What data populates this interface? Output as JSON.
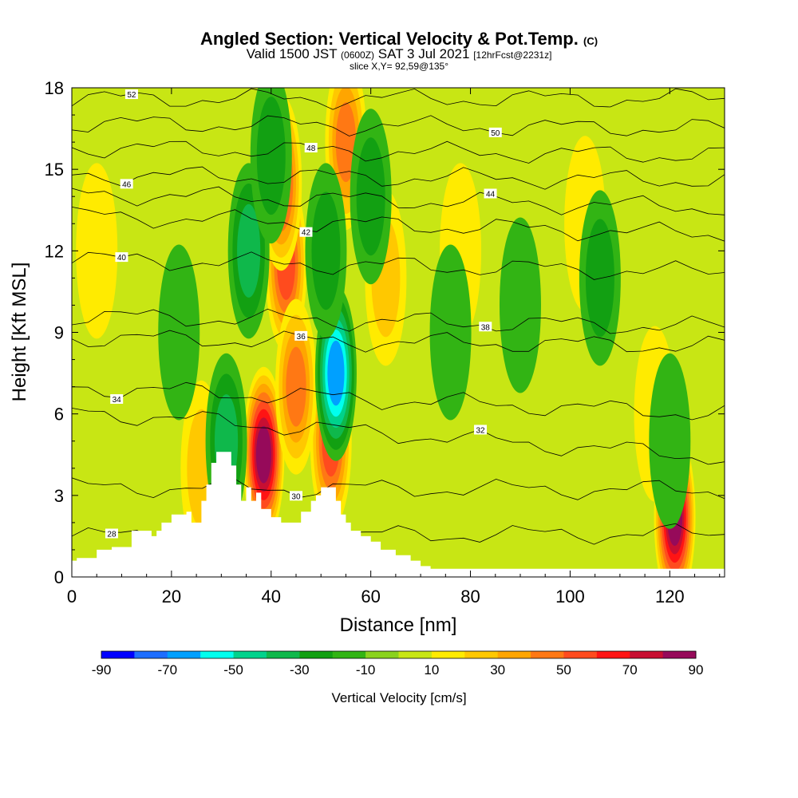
{
  "titles": {
    "main": "Angled Section: Vertical Velocity & Pot.Temp.",
    "main_suffix": "(C)",
    "valid_a": "Valid 1500 JST",
    "valid_b": "(0600Z)",
    "valid_c": "SAT 3 Jul 2021",
    "valid_d": "[12hrFcst@2231z]",
    "slice": "slice X,Y= 92,59@135°"
  },
  "chart_data": {
    "type": "heatmap",
    "xlabel": "Distance [nm]",
    "ylabel": "Height [Kft MSL]",
    "xlim": [
      0,
      131
    ],
    "ylim": [
      0,
      18
    ],
    "xticks": [
      0,
      20,
      40,
      60,
      80,
      100,
      120
    ],
    "yticks": [
      0,
      3,
      6,
      9,
      12,
      15,
      18
    ],
    "colorbar": {
      "label": "Vertical Velocity [cm/s]",
      "ticks": [
        -90,
        -70,
        -50,
        -30,
        -10,
        10,
        30,
        50,
        70,
        90
      ],
      "boundaries": [
        -90,
        -80,
        -70,
        -60,
        -50,
        -40,
        -30,
        -20,
        -10,
        0,
        10,
        20,
        30,
        40,
        50,
        60,
        70,
        80,
        90
      ],
      "colors": [
        "#0000ff",
        "#1e6eff",
        "#00a0ff",
        "#00ffee",
        "#00d28c",
        "#0fb84b",
        "#12a012",
        "#32b414",
        "#8ad21e",
        "#c8e614",
        "#ffeb00",
        "#ffc800",
        "#ffa500",
        "#ff7814",
        "#ff4b1e",
        "#ff1414",
        "#c80f32",
        "#960a5a",
        "#5a0a8c"
      ]
    },
    "background_value": 0,
    "updrafts": [
      {
        "x": 38.5,
        "y": 4.5,
        "value": 90
      },
      {
        "x": 43,
        "y": 11.5,
        "value": 60
      },
      {
        "x": 42,
        "y": 14.5,
        "value": 55
      },
      {
        "x": 121,
        "y": 2.2,
        "value": 85
      },
      {
        "x": 52,
        "y": 5,
        "value": 60
      },
      {
        "x": 55,
        "y": 16,
        "value": 50
      },
      {
        "x": 45,
        "y": 7,
        "value": 45
      },
      {
        "x": 26,
        "y": 4,
        "value": 30
      },
      {
        "x": 63,
        "y": 11,
        "value": 25
      },
      {
        "x": 78,
        "y": 12,
        "value": 20
      },
      {
        "x": 103,
        "y": 13,
        "value": 20
      },
      {
        "x": 117,
        "y": 6,
        "value": 20
      },
      {
        "x": 5,
        "y": 12,
        "value": 15
      }
    ],
    "downdrafts": [
      {
        "x": 53,
        "y": 7.5,
        "value": -70
      },
      {
        "x": 31,
        "y": 5,
        "value": -40
      },
      {
        "x": 35.5,
        "y": 12,
        "value": -35
      },
      {
        "x": 40,
        "y": 15.5,
        "value": -30
      },
      {
        "x": 51,
        "y": 12,
        "value": -30
      },
      {
        "x": 60,
        "y": 14,
        "value": -30
      },
      {
        "x": 21.5,
        "y": 9,
        "value": -20
      },
      {
        "x": 106,
        "y": 11,
        "value": -25
      },
      {
        "x": 90,
        "y": 10,
        "value": -20
      },
      {
        "x": 120,
        "y": 5,
        "value": -20
      },
      {
        "x": 76,
        "y": 9,
        "value": -15
      }
    ],
    "terrain": [
      [
        0,
        0.6
      ],
      [
        1,
        0.7
      ],
      [
        5,
        1
      ],
      [
        8,
        1.1
      ],
      [
        12,
        1.7
      ],
      [
        16,
        1.5
      ],
      [
        17,
        1.7
      ],
      [
        18,
        2
      ],
      [
        20,
        2.3
      ],
      [
        23,
        2.4
      ],
      [
        24,
        2
      ],
      [
        26,
        2.8
      ],
      [
        27,
        3.4
      ],
      [
        28,
        4.2
      ],
      [
        29,
        4.6
      ],
      [
        31,
        4.6
      ],
      [
        32,
        4.1
      ],
      [
        33,
        3.4
      ],
      [
        34,
        2.8
      ],
      [
        35,
        3.3
      ],
      [
        36,
        2.8
      ],
      [
        37,
        3.1
      ],
      [
        38,
        2.5
      ],
      [
        39,
        2.5
      ],
      [
        40,
        2.2
      ],
      [
        42,
        2.0
      ],
      [
        45,
        2.0
      ],
      [
        46,
        2.4
      ],
      [
        48,
        2.8
      ],
      [
        49,
        3.0
      ],
      [
        50,
        3.3
      ],
      [
        52,
        3.3
      ],
      [
        53,
        2.8
      ],
      [
        54,
        2.3
      ],
      [
        55,
        2.0
      ],
      [
        56,
        1.7
      ],
      [
        58,
        1.5
      ],
      [
        60,
        1.3
      ],
      [
        62,
        1.0
      ],
      [
        65,
        0.8
      ],
      [
        68,
        0.6
      ],
      [
        70,
        0.4
      ],
      [
        72,
        0.3
      ],
      [
        131,
        0.3
      ]
    ],
    "isentropes": [
      {
        "label": "28",
        "y_left": 1.5,
        "y_right": 1.6
      },
      {
        "label": "30",
        "y_left": 3.3,
        "y_right": 3.2
      },
      {
        "label": "32",
        "y_left": 6.1,
        "y_right": 4.4
      },
      {
        "label": "34",
        "y_left": 7.0,
        "y_right": 6.0
      },
      {
        "label": "36",
        "y_left": 8.8,
        "y_right": 8.5
      },
      {
        "label": "38",
        "y_left": 9.6,
        "y_right": 9.2
      },
      {
        "label": "40",
        "y_left": 11.7,
        "y_right": 11.2
      },
      {
        "label": "42",
        "y_left": 13.3,
        "y_right": 12.6
      },
      {
        "label": "44",
        "y_left": 14.1,
        "y_right": 13.6
      },
      {
        "label": "46",
        "y_left": 14.8,
        "y_right": 14.6
      },
      {
        "label": "48",
        "y_left": 15.8,
        "y_right": 15.5
      },
      {
        "label": "50",
        "y_left": 16.7,
        "y_right": 16.5
      },
      {
        "label": "52",
        "y_left": 17.6,
        "y_right": 17.6
      }
    ]
  }
}
